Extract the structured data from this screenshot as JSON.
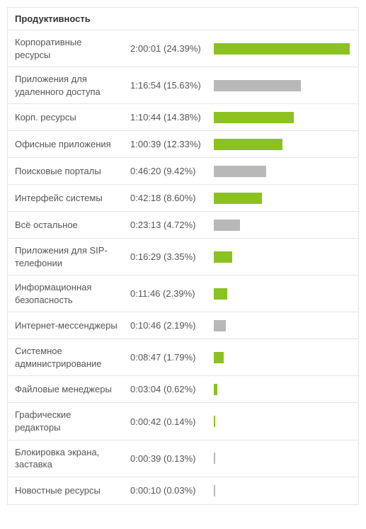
{
  "title": "Продуктивность",
  "colors": {
    "green": "#8bc220",
    "gray": "#b8b8b8",
    "text": "#555555",
    "border": "#e5e5e5"
  },
  "max_percent": 24.39,
  "rows": [
    {
      "label": "Корпоративные ресурсы",
      "time": "2:00:01",
      "percent": 24.39,
      "bar_color": "#8bc220"
    },
    {
      "label": "Приложения для удаленного доступа",
      "time": "1:16:54",
      "percent": 15.63,
      "bar_color": "#b8b8b8"
    },
    {
      "label": "Корп. ресурсы",
      "time": "1:10:44",
      "percent": 14.38,
      "bar_color": "#8bc220"
    },
    {
      "label": "Офисные приложения",
      "time": "1:00:39",
      "percent": 12.33,
      "bar_color": "#8bc220"
    },
    {
      "label": "Поисковые порталы",
      "time": "0:46:20",
      "percent": 9.42,
      "bar_color": "#b8b8b8"
    },
    {
      "label": "Интерфейс системы",
      "time": "0:42:18",
      "percent": 8.6,
      "bar_color": "#8bc220"
    },
    {
      "label": "Всё остальное",
      "time": "0:23:13",
      "percent": 4.72,
      "bar_color": "#b8b8b8"
    },
    {
      "label": "Приложения для SIP-телефонии",
      "time": "0:16:29",
      "percent": 3.35,
      "bar_color": "#8bc220"
    },
    {
      "label": "Информационная безопасность",
      "time": "0:11:46",
      "percent": 2.39,
      "bar_color": "#8bc220"
    },
    {
      "label": "Интернет-мессенджеры",
      "time": "0:10:46",
      "percent": 2.19,
      "bar_color": "#b8b8b8"
    },
    {
      "label": "Системное администрирование",
      "time": "0:08:47",
      "percent": 1.79,
      "bar_color": "#8bc220"
    },
    {
      "label": "Файловые менеджеры",
      "time": "0:03:04",
      "percent": 0.62,
      "bar_color": "#8bc220"
    },
    {
      "label": "Графические редакторы",
      "time": "0:00:42",
      "percent": 0.14,
      "bar_color": "#8bc220"
    },
    {
      "label": "Блокировка экрана, заставка",
      "time": "0:00:39",
      "percent": 0.13,
      "bar_color": "#b8b8b8"
    },
    {
      "label": "Новостные ресурсы",
      "time": "0:00:10",
      "percent": 0.03,
      "bar_color": "#b8b8b8"
    }
  ]
}
